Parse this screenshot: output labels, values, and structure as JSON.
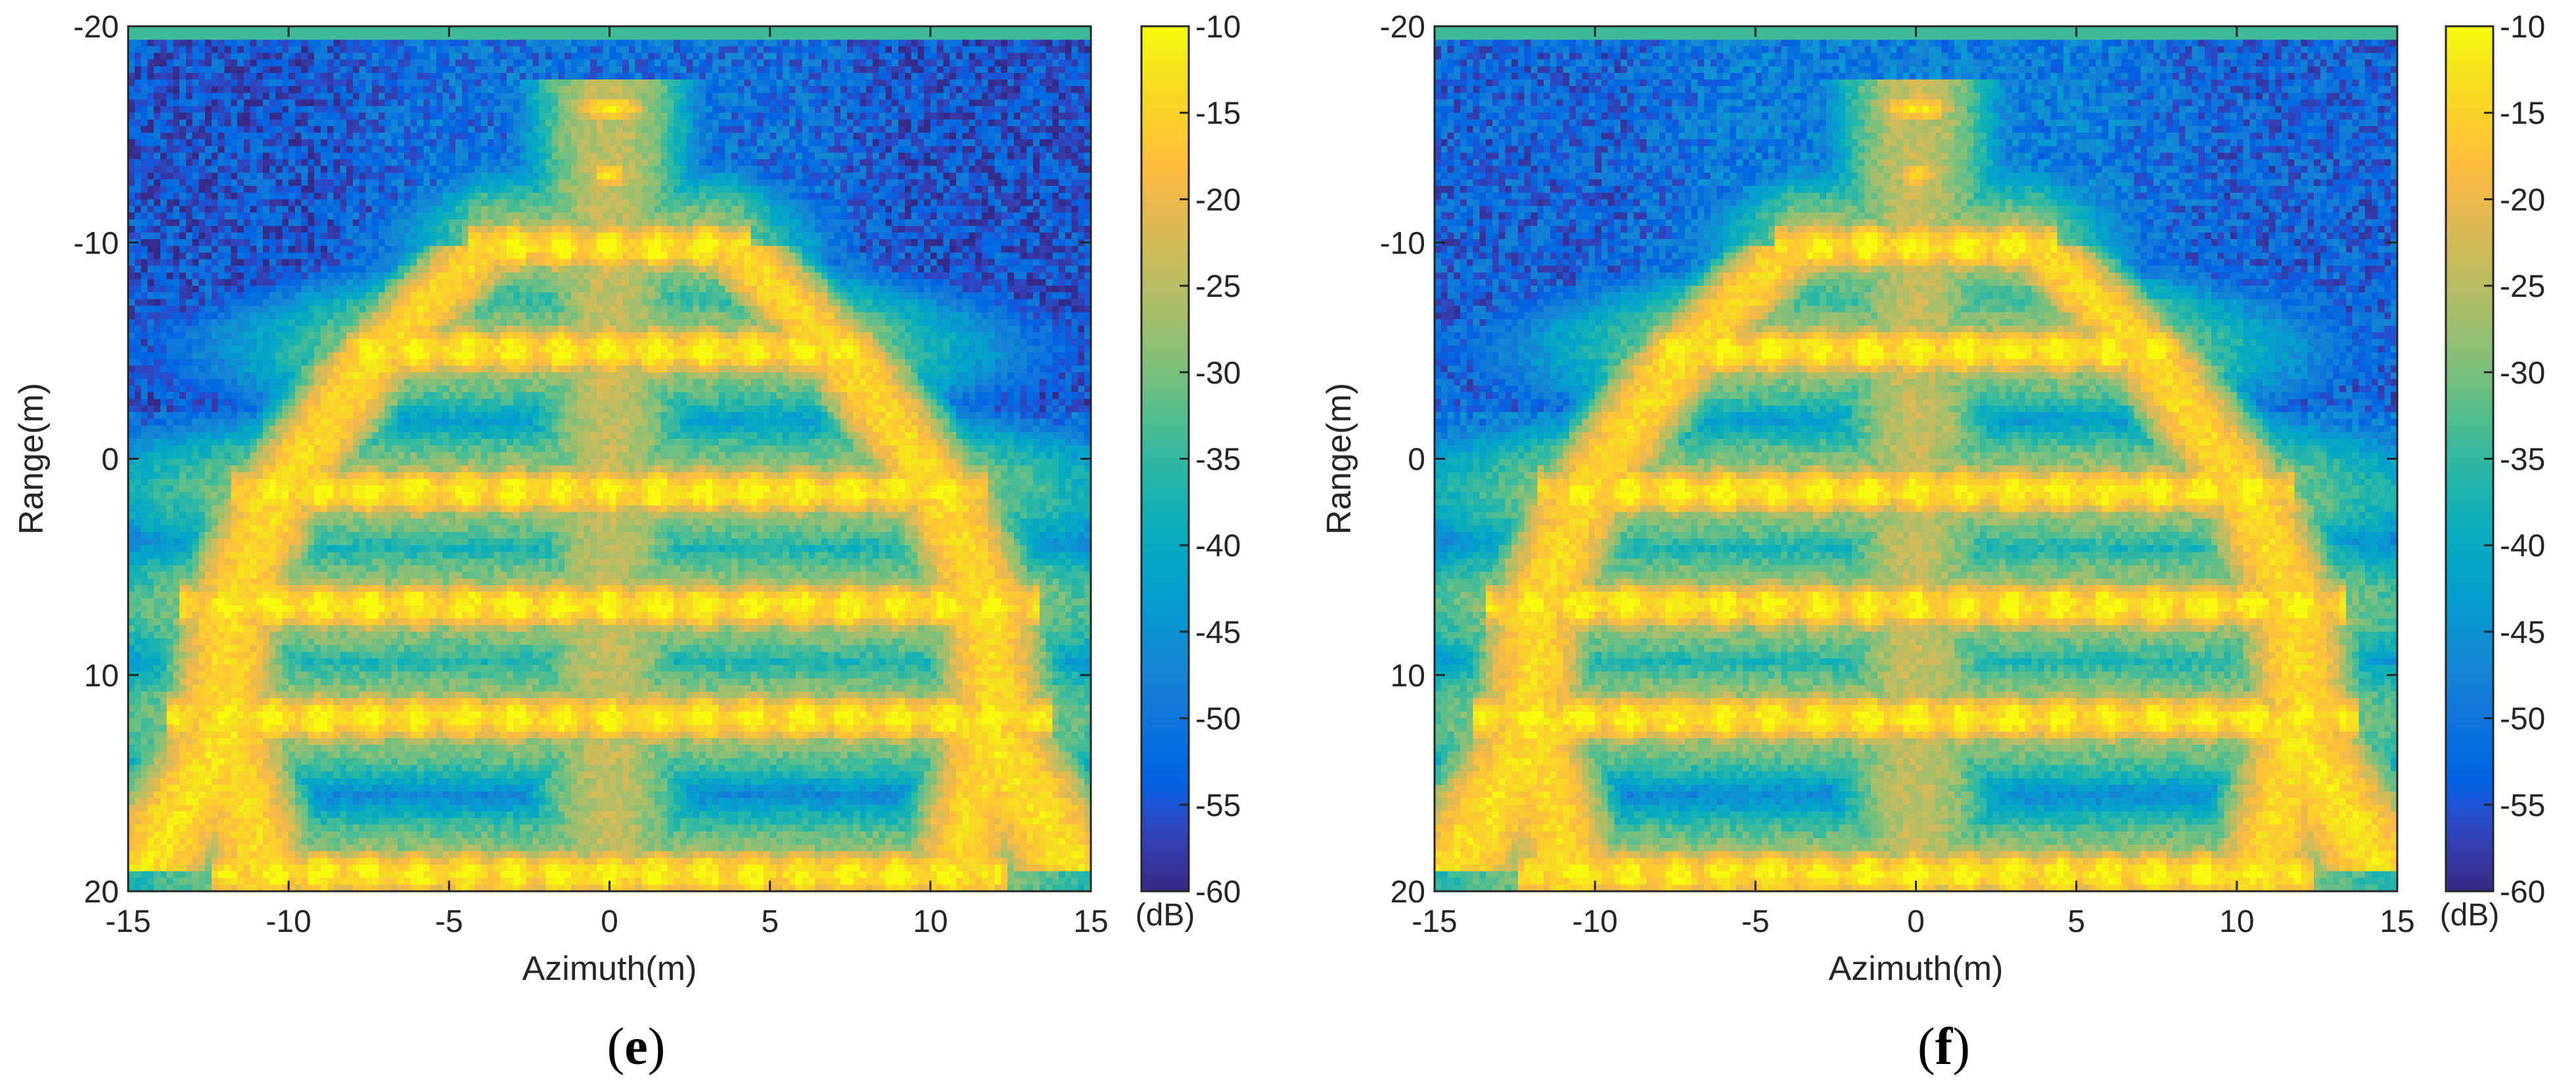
{
  "chart_data": [
    {
      "type": "heatmap",
      "panel_label": {
        "open": "(",
        "letter": "e",
        "close": ")"
      },
      "xlabel": "Azimuth(m)",
      "ylabel": "Range(m)",
      "xlim": [
        -15,
        15
      ],
      "ylim": [
        -20,
        20
      ],
      "y_axis_reversed": true,
      "xticks": [
        "-15",
        "-10",
        "-5",
        "0",
        "5",
        "10",
        "15"
      ],
      "yticks": [
        "-20",
        "-10",
        "0",
        "10",
        "20"
      ],
      "colorbar": {
        "range": [
          -60,
          -10
        ],
        "ticks": [
          "-10",
          "-15",
          "-20",
          "-25",
          "-30",
          "-35",
          "-40",
          "-45",
          "-50",
          "-55",
          "-60"
        ],
        "unit": "(dB)",
        "colormap": "parula"
      },
      "features": {
        "top_band_range": -19.7,
        "spire": [
          {
            "range": -16.2,
            "half_width": 0.9
          },
          {
            "range": -13.1,
            "half_width": 0.45
          }
        ],
        "tiers": [
          {
            "range": -9.8,
            "half_width": 3.9
          },
          {
            "range": -5.0,
            "half_width": 7.3
          },
          {
            "range": 1.5,
            "half_width": 10.5
          },
          {
            "range": 6.8,
            "half_width": 12.0
          },
          {
            "range": 12.0,
            "half_width": 12.3
          },
          {
            "range": 19.2,
            "half_width": 11.0
          }
        ],
        "diagonal_arm_end": {
          "range": 17.5,
          "half_width": 13.8
        },
        "floor_db": -52
      }
    },
    {
      "type": "heatmap",
      "panel_label": {
        "open": "(",
        "letter": "f",
        "close": ")"
      },
      "xlabel": "Azimuth(m)",
      "ylabel": "Range(m)",
      "xlim": [
        -15,
        15
      ],
      "ylim": [
        -20,
        20
      ],
      "y_axis_reversed": true,
      "xticks": [
        "-15",
        "-10",
        "-5",
        "0",
        "5",
        "10",
        "15"
      ],
      "yticks": [
        "-20",
        "-10",
        "0",
        "10",
        "20"
      ],
      "colorbar": {
        "range": [
          -60,
          -10
        ],
        "ticks": [
          "-10",
          "-15",
          "-20",
          "-25",
          "-30",
          "-35",
          "-40",
          "-45",
          "-50",
          "-55",
          "-60"
        ],
        "unit": "(dB)",
        "colormap": "parula"
      },
      "features": {
        "top_band_range": -19.7,
        "spire": [
          {
            "range": -16.2,
            "half_width": 0.9
          },
          {
            "range": -13.1,
            "half_width": 0.45
          }
        ],
        "tiers": [
          {
            "range": -9.8,
            "half_width": 3.9
          },
          {
            "range": -5.0,
            "half_width": 7.3
          },
          {
            "range": 1.5,
            "half_width": 10.5
          },
          {
            "range": 6.8,
            "half_width": 12.0
          },
          {
            "range": 12.0,
            "half_width": 12.3
          },
          {
            "range": 19.2,
            "half_width": 11.0
          }
        ],
        "diagonal_arm_end": {
          "range": 17.5,
          "half_width": 13.8
        },
        "floor_db": -50
      }
    }
  ]
}
